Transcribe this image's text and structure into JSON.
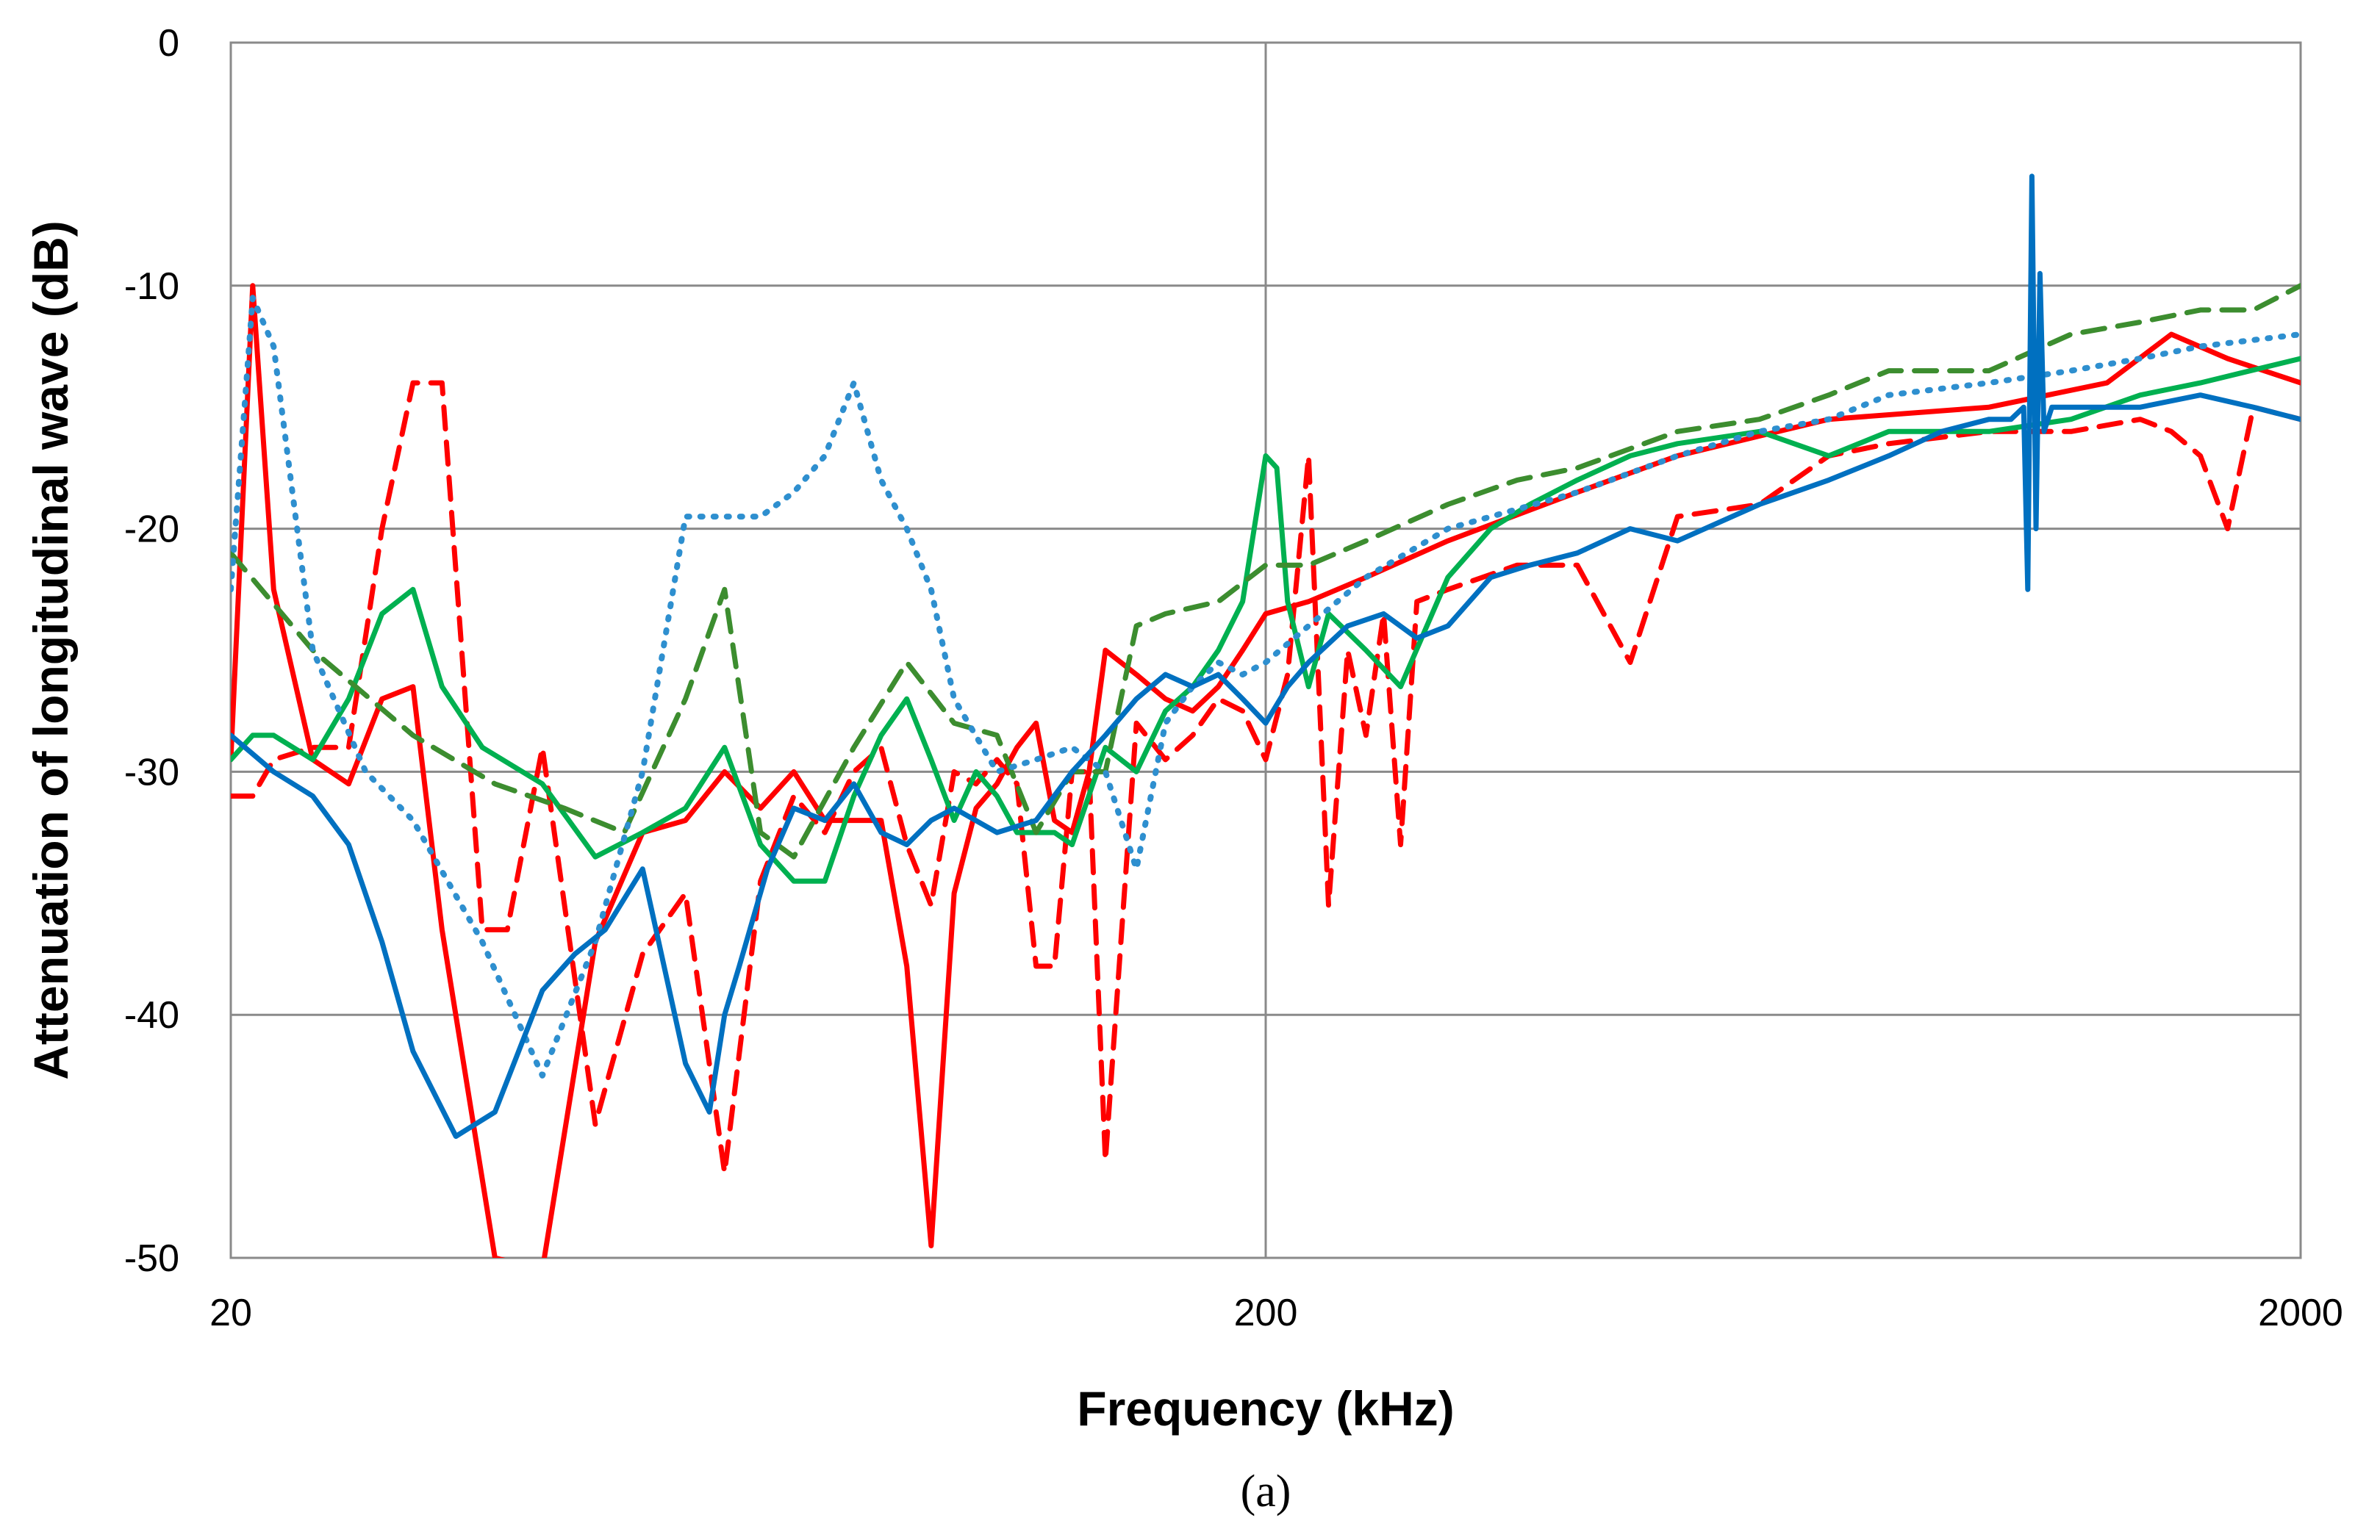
{
  "chart_data": {
    "type": "line",
    "xlabel": "Frequency  (kHz)",
    "ylabel": "Attenuation of longitudinal wave (dB)",
    "caption": "(a)",
    "x_scale": "log",
    "xlim": [
      20,
      2000
    ],
    "ylim": [
      -50,
      0
    ],
    "x_ticks": [
      20,
      200,
      2000
    ],
    "y_ticks": [
      0,
      -10,
      -20,
      -30,
      -40,
      -50
    ],
    "grid": "on",
    "legend": "none",
    "series": [
      {
        "color": "#ff0000",
        "style": "solid",
        "x": [
          20,
          21,
          22,
          24,
          26,
          28,
          30,
          32,
          36,
          40,
          45,
          50,
          55,
          60,
          65,
          70,
          75,
          80,
          85,
          90,
          95,
          100,
          105,
          110,
          115,
          120,
          125,
          130,
          135,
          140,
          150,
          160,
          170,
          180,
          190,
          200,
          220,
          250,
          300,
          400,
          500,
          700,
          1000,
          1300,
          1500,
          1700,
          2000
        ],
        "y": [
          -29.5,
          -10.0,
          -22.5,
          -29.5,
          -30.5,
          -27.0,
          -26.5,
          -36.5,
          -50.0,
          -50.5,
          -37.0,
          -32.5,
          -32.0,
          -30.0,
          -31.5,
          -30.0,
          -32.0,
          -32.0,
          -32.0,
          -38.0,
          -49.5,
          -35.0,
          -31.5,
          -30.5,
          -29.0,
          -28.0,
          -32.0,
          -32.5,
          -30.0,
          -25.0,
          -26.0,
          -27.0,
          -27.5,
          -26.5,
          -25.0,
          -23.5,
          -23.0,
          -22.0,
          -20.5,
          -18.5,
          -17.0,
          -15.5,
          -15.0,
          -14.0,
          -12.0,
          -13.0,
          -14.0
        ]
      },
      {
        "color": "#ff0000",
        "style": "dashed",
        "x": [
          20,
          21,
          22,
          24,
          26,
          28,
          30,
          32,
          35,
          37,
          40,
          45,
          50,
          55,
          60,
          65,
          70,
          75,
          80,
          85,
          90,
          95,
          100,
          105,
          110,
          115,
          120,
          125,
          130,
          135,
          140,
          150,
          160,
          170,
          180,
          190,
          200,
          210,
          220,
          230,
          240,
          250,
          260,
          270,
          280,
          300,
          350,
          400,
          450,
          500,
          600,
          700,
          800,
          1000,
          1200,
          1400,
          1500,
          1600,
          1700,
          1800,
          2000
        ],
        "y": [
          -31.0,
          -31.0,
          -29.5,
          -29.0,
          -29.0,
          -20.0,
          -14.0,
          -14.0,
          -36.5,
          -36.5,
          -29.0,
          -44.5,
          -37.5,
          -35.0,
          -46.5,
          -34.5,
          -31.0,
          -32.5,
          -30.0,
          -29.0,
          -33.0,
          -35.5,
          -30.0,
          -30.5,
          -29.5,
          -30.5,
          -38.0,
          -38.0,
          -30.0,
          -30.0,
          -46.0,
          -28.0,
          -29.5,
          -28.5,
          -27.0,
          -27.5,
          -29.5,
          -26.0,
          -17.0,
          -35.5,
          -25.0,
          -28.5,
          -23.5,
          -33.0,
          -23.0,
          -22.5,
          -21.5,
          -21.5,
          -25.5,
          -19.5,
          -19.0,
          -17.0,
          -16.5,
          -16.0,
          -16.0,
          -15.5,
          -16.0,
          -17.0,
          -20.0,
          -15.0,
          -15.5
        ]
      },
      {
        "color": "#00b050",
        "style": "solid",
        "x": [
          20,
          21,
          22,
          24,
          26,
          28,
          30,
          32,
          35,
          40,
          45,
          50,
          55,
          60,
          65,
          70,
          75,
          80,
          85,
          90,
          95,
          100,
          105,
          110,
          115,
          120,
          125,
          130,
          140,
          150,
          160,
          170,
          180,
          190,
          200,
          205,
          210,
          220,
          230,
          250,
          270,
          300,
          330,
          360,
          400,
          450,
          500,
          600,
          700,
          800,
          1000,
          1200,
          1400,
          1600,
          2000
        ],
        "y": [
          -29.5,
          -28.5,
          -28.5,
          -29.5,
          -27.0,
          -23.5,
          -22.5,
          -26.5,
          -29.0,
          -30.5,
          -33.5,
          -32.5,
          -31.5,
          -29.0,
          -33.0,
          -34.5,
          -34.5,
          -31.0,
          -28.5,
          -27.0,
          -29.5,
          -32.0,
          -30.0,
          -31.0,
          -32.5,
          -32.5,
          -32.5,
          -33.0,
          -29.0,
          -30.0,
          -27.5,
          -26.5,
          -25.0,
          -23.0,
          -17.0,
          -17.5,
          -23.0,
          -26.5,
          -23.5,
          -25.0,
          -26.5,
          -22.0,
          -20.0,
          -19.0,
          -18.0,
          -17.0,
          -16.5,
          -16.0,
          -17.0,
          -16.0,
          -16.0,
          -15.5,
          -14.5,
          -14.0,
          -13.0
        ]
      },
      {
        "color": "#3c8d2f",
        "style": "dashed",
        "x": [
          20,
          24,
          30,
          36,
          42,
          48,
          55,
          60,
          65,
          70,
          80,
          90,
          100,
          110,
          120,
          130,
          140,
          150,
          160,
          180,
          200,
          220,
          250,
          300,
          350,
          400,
          500,
          600,
          700,
          800,
          1000,
          1200,
          1400,
          1600,
          1800,
          2000
        ],
        "y": [
          -21.0,
          -25.0,
          -28.5,
          -30.5,
          -31.5,
          -32.5,
          -27.0,
          -22.5,
          -32.5,
          -33.5,
          -29.0,
          -25.5,
          -28.0,
          -28.5,
          -32.5,
          -30.0,
          -30.0,
          -24.0,
          -23.5,
          -23.0,
          -21.5,
          -21.5,
          -20.5,
          -19.0,
          -18.0,
          -17.5,
          -16.0,
          -15.5,
          -14.5,
          -13.5,
          -13.5,
          -12.0,
          -11.5,
          -11.0,
          -11.0,
          -10.0
        ]
      },
      {
        "color": "#2e8fcf",
        "style": "dotted",
        "x": [
          20,
          21,
          22,
          24,
          27,
          30,
          35,
          40,
          45,
          50,
          55,
          60,
          65,
          70,
          75,
          80,
          85,
          90,
          95,
          100,
          110,
          120,
          130,
          140,
          150,
          160,
          170,
          180,
          190,
          200,
          220,
          250,
          300,
          400,
          500,
          600,
          700,
          800,
          1000,
          1200,
          1400,
          1600,
          2000
        ],
        "y": [
          -22.5,
          -10.5,
          -12.5,
          -25.0,
          -30.0,
          -32.0,
          -37.0,
          -42.5,
          -37.0,
          -30.0,
          -19.5,
          -19.5,
          -19.5,
          -18.5,
          -17.0,
          -14.0,
          -18.0,
          -20.0,
          -22.5,
          -27.0,
          -30.0,
          -29.5,
          -29.0,
          -30.0,
          -34.0,
          -28.0,
          -26.5,
          -25.5,
          -26.0,
          -25.5,
          -24.0,
          -22.0,
          -20.0,
          -18.5,
          -17.0,
          -16.0,
          -15.5,
          -14.5,
          -14.0,
          -13.5,
          -13.0,
          -12.5,
          -12.0
        ]
      },
      {
        "color": "#0070c0",
        "style": "solid",
        "x": [
          20,
          22,
          24,
          26,
          28,
          30,
          33,
          36,
          40,
          43,
          46,
          50,
          55,
          58,
          60,
          62,
          66,
          70,
          75,
          80,
          85,
          90,
          95,
          100,
          110,
          120,
          130,
          140,
          150,
          160,
          170,
          180,
          190,
          200,
          210,
          220,
          240,
          260,
          280,
          300,
          330,
          360,
          400,
          450,
          500,
          600,
          700,
          800,
          900,
          1000,
          1050,
          1080,
          1090,
          1100,
          1110,
          1120,
          1130,
          1150,
          1200,
          1300,
          1400,
          1600,
          1800,
          2000
        ],
        "y": [
          -28.5,
          -30.0,
          -31.0,
          -33.0,
          -37.0,
          -41.5,
          -45.0,
          -44.0,
          -39.0,
          -37.5,
          -36.5,
          -34.0,
          -42.0,
          -44.0,
          -40.0,
          -38.0,
          -34.0,
          -31.5,
          -32.0,
          -30.5,
          -32.5,
          -33.0,
          -32.0,
          -31.5,
          -32.5,
          -32.0,
          -30.0,
          -28.5,
          -27.0,
          -26.0,
          -26.5,
          -26.0,
          -27.0,
          -28.0,
          -26.5,
          -25.5,
          -24.0,
          -23.5,
          -24.5,
          -24.0,
          -22.0,
          -21.5,
          -21.0,
          -20.0,
          -20.5,
          -19.0,
          -18.0,
          -17.0,
          -16.0,
          -15.5,
          -15.5,
          -15.0,
          -22.5,
          -5.5,
          -20.0,
          -9.5,
          -16.0,
          -15.0,
          -15.0,
          -15.0,
          -15.0,
          -14.5,
          -15.0,
          -15.5
        ]
      }
    ]
  }
}
